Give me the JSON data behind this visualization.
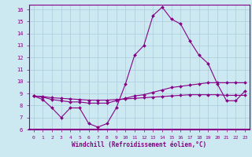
{
  "xlabel": "Windchill (Refroidissement éolien,°C)",
  "background_color": "#cce8f0",
  "grid_color": "#aaccdd",
  "line_color": "#880088",
  "xlim": [
    -0.5,
    23.5
  ],
  "ylim": [
    6,
    16.4
  ],
  "yticks": [
    6,
    7,
    8,
    9,
    10,
    11,
    12,
    13,
    14,
    15,
    16
  ],
  "xticks": [
    0,
    1,
    2,
    3,
    4,
    5,
    6,
    7,
    8,
    9,
    10,
    11,
    12,
    13,
    14,
    15,
    16,
    17,
    18,
    19,
    20,
    21,
    22,
    23
  ],
  "series": [
    [
      8.8,
      8.5,
      7.8,
      7.0,
      7.8,
      7.8,
      6.5,
      6.2,
      6.5,
      7.8,
      9.8,
      12.2,
      13.0,
      15.5,
      16.2,
      15.2,
      14.8,
      13.4,
      12.2,
      11.5,
      9.8,
      8.4,
      8.4,
      9.2
    ],
    [
      8.8,
      8.7,
      8.5,
      8.4,
      8.3,
      8.3,
      8.2,
      8.2,
      8.2,
      8.4,
      8.6,
      8.8,
      8.9,
      9.1,
      9.3,
      9.5,
      9.6,
      9.7,
      9.8,
      9.9,
      9.9,
      9.9,
      9.9,
      9.9
    ],
    [
      8.8,
      8.75,
      8.65,
      8.6,
      8.55,
      8.5,
      8.45,
      8.45,
      8.45,
      8.5,
      8.55,
      8.6,
      8.65,
      8.7,
      8.75,
      8.8,
      8.85,
      8.9,
      8.9,
      8.9,
      8.9,
      8.85,
      8.85,
      8.85
    ]
  ]
}
